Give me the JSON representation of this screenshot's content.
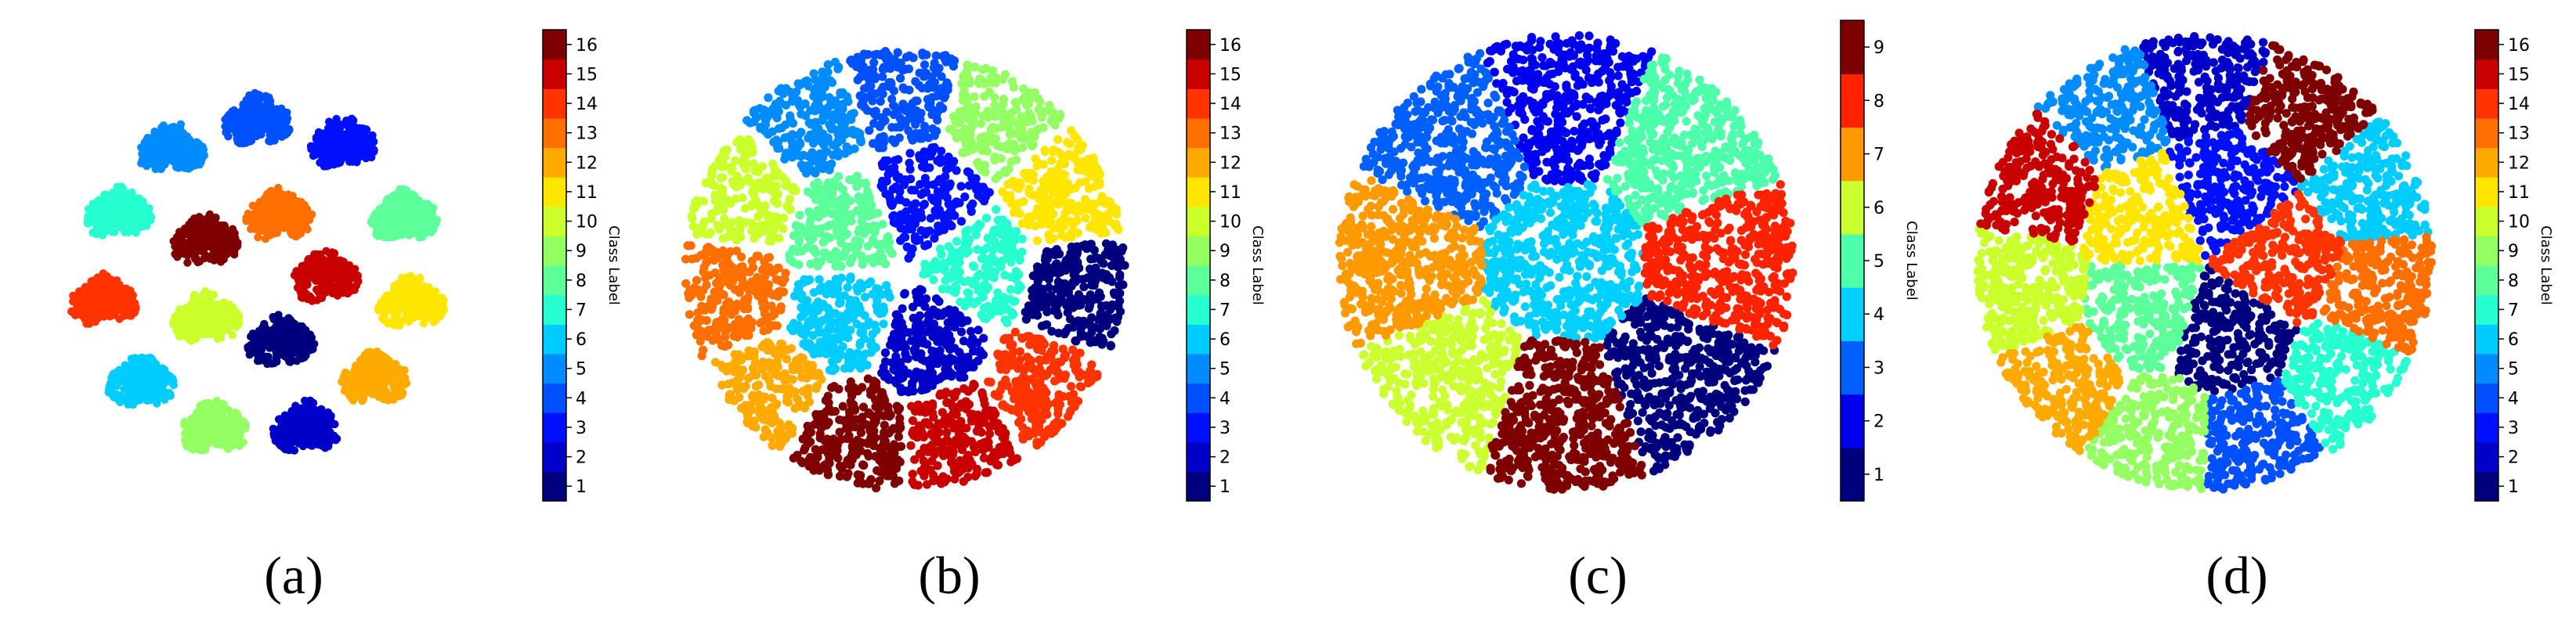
{
  "chart_data": [
    {
      "type": "scatter",
      "panel_label": "(a)",
      "colorbar_label": "Class Label",
      "colorbar_ticks": [
        "1",
        "2",
        "3",
        "4",
        "5",
        "6",
        "7",
        "8",
        "9",
        "10",
        "11",
        "12",
        "13",
        "14",
        "15",
        "16"
      ],
      "num_classes": 16,
      "layout": "scattered",
      "clusters": [
        {
          "label": 1,
          "color": "#00007f"
        },
        {
          "label": 2,
          "color": "#0000c8"
        },
        {
          "label": 3,
          "color": "#0010ff"
        },
        {
          "label": 4,
          "color": "#0050ff"
        },
        {
          "label": 5,
          "color": "#008cff"
        },
        {
          "label": 6,
          "color": "#00ccff"
        },
        {
          "label": 7,
          "color": "#26ffd0"
        },
        {
          "label": 8,
          "color": "#5dff9a"
        },
        {
          "label": 9,
          "color": "#94ff63"
        },
        {
          "label": 10,
          "color": "#caff2c"
        },
        {
          "label": 11,
          "color": "#ffe600"
        },
        {
          "label": 12,
          "color": "#ffaa00"
        },
        {
          "label": 13,
          "color": "#ff6f00"
        },
        {
          "label": 14,
          "color": "#ff3300"
        },
        {
          "label": 15,
          "color": "#c80000"
        },
        {
          "label": 16,
          "color": "#7f0000"
        }
      ]
    },
    {
      "type": "scatter",
      "panel_label": "(b)",
      "colorbar_label": "Class Label",
      "colorbar_ticks": [
        "1",
        "2",
        "3",
        "4",
        "5",
        "6",
        "7",
        "8",
        "9",
        "10",
        "11",
        "12",
        "13",
        "14",
        "15",
        "16"
      ],
      "num_classes": 16,
      "layout": "voronoi-partial",
      "clusters": [
        {
          "label": 1,
          "color": "#00007f"
        },
        {
          "label": 2,
          "color": "#0000c8"
        },
        {
          "label": 3,
          "color": "#0010ff"
        },
        {
          "label": 4,
          "color": "#0050ff"
        },
        {
          "label": 5,
          "color": "#008cff"
        },
        {
          "label": 6,
          "color": "#00ccff"
        },
        {
          "label": 7,
          "color": "#26ffd0"
        },
        {
          "label": 8,
          "color": "#5dff9a"
        },
        {
          "label": 9,
          "color": "#94ff63"
        },
        {
          "label": 10,
          "color": "#caff2c"
        },
        {
          "label": 11,
          "color": "#ffe600"
        },
        {
          "label": 12,
          "color": "#ffaa00"
        },
        {
          "label": 13,
          "color": "#ff6f00"
        },
        {
          "label": 14,
          "color": "#ff3300"
        },
        {
          "label": 15,
          "color": "#c80000"
        },
        {
          "label": 16,
          "color": "#7f0000"
        }
      ]
    },
    {
      "type": "scatter",
      "panel_label": "(c)",
      "colorbar_label": "Class Label",
      "colorbar_ticks": [
        "1",
        "2",
        "3",
        "4",
        "5",
        "6",
        "7",
        "8",
        "9"
      ],
      "num_classes": 9,
      "layout": "voronoi-full",
      "clusters": [
        {
          "label": 1,
          "color": "#00007f"
        },
        {
          "label": 2,
          "color": "#0000f0"
        },
        {
          "label": 3,
          "color": "#0060ff"
        },
        {
          "label": 4,
          "color": "#00d0ff"
        },
        {
          "label": 5,
          "color": "#4dffaa"
        },
        {
          "label": 6,
          "color": "#ccff30"
        },
        {
          "label": 7,
          "color": "#ff9900"
        },
        {
          "label": 8,
          "color": "#ff2200"
        },
        {
          "label": 9,
          "color": "#7f0000"
        }
      ]
    },
    {
      "type": "scatter",
      "panel_label": "(d)",
      "colorbar_label": "Class Label",
      "colorbar_ticks": [
        "1",
        "2",
        "3",
        "4",
        "5",
        "6",
        "7",
        "8",
        "9",
        "10",
        "11",
        "12",
        "13",
        "14",
        "15",
        "16"
      ],
      "num_classes": 16,
      "layout": "voronoi-full",
      "clusters": [
        {
          "label": 1,
          "color": "#00007f"
        },
        {
          "label": 2,
          "color": "#0000c8"
        },
        {
          "label": 3,
          "color": "#0010ff"
        },
        {
          "label": 4,
          "color": "#0050ff"
        },
        {
          "label": 5,
          "color": "#008cff"
        },
        {
          "label": 6,
          "color": "#00ccff"
        },
        {
          "label": 7,
          "color": "#26ffd0"
        },
        {
          "label": 8,
          "color": "#5dff9a"
        },
        {
          "label": 9,
          "color": "#94ff63"
        },
        {
          "label": 10,
          "color": "#caff2c"
        },
        {
          "label": 11,
          "color": "#ffe600"
        },
        {
          "label": 12,
          "color": "#ffaa00"
        },
        {
          "label": 13,
          "color": "#ff6f00"
        },
        {
          "label": 14,
          "color": "#ff3300"
        },
        {
          "label": 15,
          "color": "#c80000"
        },
        {
          "label": 16,
          "color": "#7f0000"
        }
      ]
    }
  ]
}
